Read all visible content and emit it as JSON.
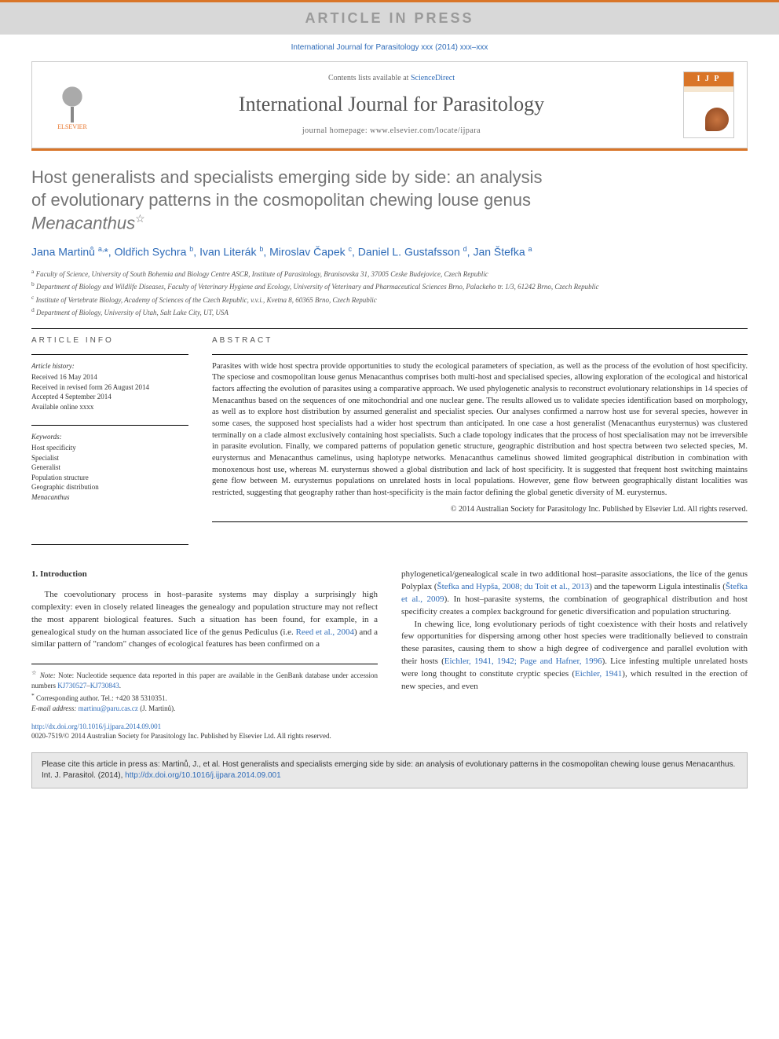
{
  "banner": "ARTICLE IN PRESS",
  "journal_ref": "International Journal for Parasitology xxx (2014) xxx–xxx",
  "header": {
    "contents_prefix": "Contents lists available at ",
    "contents_link": "ScienceDirect",
    "journal_title": "International Journal for Parasitology",
    "homepage_prefix": "journal homepage: ",
    "homepage_url": "www.elsevier.com/locate/ijpara",
    "elsevier_label": "ELSEVIER",
    "cover_label": "I J P"
  },
  "title_line1": "Host generalists and specialists emerging side by side: an analysis",
  "title_line2": "of evolutionary patterns in the cosmopolitan chewing louse genus",
  "title_line3": "Menacanthus",
  "star": "☆",
  "authors_html": "Jana Martinů <sup>a,</sup>*, Oldřich Sychra <sup>b</sup>, Ivan Literák <sup>b</sup>, Miroslav Čapek <sup>c</sup>, Daniel L. Gustafsson <sup>d</sup>, Jan Štefka <sup>a</sup>",
  "affiliations": [
    {
      "sup": "a",
      "text": "Faculty of Science, University of South Bohemia and Biology Centre ASCR, Institute of Parasitology, Branisovska 31, 37005 Ceske Budejovice, Czech Republic"
    },
    {
      "sup": "b",
      "text": "Department of Biology and Wildlife Diseases, Faculty of Veterinary Hygiene and Ecology, University of Veterinary and Pharmaceutical Sciences Brno, Palackeho tr. 1/3, 61242 Brno, Czech Republic"
    },
    {
      "sup": "c",
      "text": "Institute of Vertebrate Biology, Academy of Sciences of the Czech Republic, v.v.i., Kvetna 8, 60365 Brno, Czech Republic"
    },
    {
      "sup": "d",
      "text": "Department of Biology, University of Utah, Salt Lake City, UT, USA"
    }
  ],
  "article_info": {
    "heading": "ARTICLE INFO",
    "history_label": "Article history:",
    "history": [
      "Received 16 May 2014",
      "Received in revised form 26 August 2014",
      "Accepted 4 September 2014",
      "Available online xxxx"
    ],
    "keywords_label": "Keywords:",
    "keywords": [
      "Host specificity",
      "Specialist",
      "Generalist",
      "Population structure",
      "Geographic distribution",
      "Menacanthus"
    ]
  },
  "abstract": {
    "heading": "ABSTRACT",
    "text": "Parasites with wide host spectra provide opportunities to study the ecological parameters of speciation, as well as the process of the evolution of host specificity. The speciose and cosmopolitan louse genus Menacanthus comprises both multi-host and specialised species, allowing exploration of the ecological and historical factors affecting the evolution of parasites using a comparative approach. We used phylogenetic analysis to reconstruct evolutionary relationships in 14 species of Menacanthus based on the sequences of one mitochondrial and one nuclear gene. The results allowed us to validate species identification based on morphology, as well as to explore host distribution by assumed generalist and specialist species. Our analyses confirmed a narrow host use for several species, however in some cases, the supposed host specialists had a wider host spectrum than anticipated. In one case a host generalist (Menacanthus eurysternus) was clustered terminally on a clade almost exclusively containing host specialists. Such a clade topology indicates that the process of host specialisation may not be irreversible in parasite evolution. Finally, we compared patterns of population genetic structure, geographic distribution and host spectra between two selected species, M. eurysternus and Menacanthus camelinus, using haplotype networks. Menacanthus camelinus showed limited geographical distribution in combination with monoxenous host use, whereas M. eurysternus showed a global distribution and lack of host specificity. It is suggested that frequent host switching maintains gene flow between M. eurysternus populations on unrelated hosts in local populations. However, gene flow between geographically distant localities was restricted, suggesting that geography rather than host-specificity is the main factor defining the global genetic diversity of M. eurysternus.",
    "copyright": "© 2014 Australian Society for Parasitology Inc. Published by Elsevier Ltd. All rights reserved."
  },
  "intro": {
    "heading": "1. Introduction",
    "para1_a": "The coevolutionary process in host–parasite systems may display a surprisingly high complexity: even in closely related lineages the genealogy and population structure may not reflect the most apparent biological features. Such a situation has been found, for example, in a genealogical study on the human associated lice of the genus Pediculus (i.e. ",
    "para1_cite1": "Reed et al., 2004",
    "para1_b": ") and a similar pattern of \"random\" changes of ecological features has been confirmed on a ",
    "para2_a": "phylogenetical/genealogical scale in two additional host–parasite associations, the lice of the genus Polyplax (",
    "para2_cite1": "Štefka and Hypša, 2008; du Toit et al., 2013",
    "para2_b": ") and the tapeworm Ligula intestinalis (",
    "para2_cite2": "Štefka et al., 2009",
    "para2_c": "). In host–parasite systems, the combination of geographical distribution and host specificity creates a complex background for genetic diversification and population structuring.",
    "para3_a": "In chewing lice, long evolutionary periods of tight coexistence with their hosts and relatively few opportunities for dispersing among other host species were traditionally believed to constrain these parasites, causing them to show a high degree of codivergence and parallel evolution with their hosts (",
    "para3_cite1": "Eichler, 1941, 1942; Page and Hafner, 1996",
    "para3_b": "). Lice infesting multiple unrelated hosts were long thought to constitute cryptic species (",
    "para3_cite2": "Eichler, 1941",
    "para3_c": "), which resulted in the erection of new species, and even"
  },
  "footnotes": {
    "note_star": "☆",
    "note_text_a": "Note: Nucleotide sequence data reported in this paper are available in the GenBank database under accession numbers ",
    "note_link1": "KJ730527",
    "note_dash": "–",
    "note_link2": "KJ730843",
    "note_period": ".",
    "corr_star": "*",
    "corr_text": "Corresponding author. Tel.: +420 38 5310351.",
    "email_label": "E-mail address: ",
    "email": "martinu@paru.cas.cz",
    "email_who": " (J. Martinů)."
  },
  "doi": {
    "url": "http://dx.doi.org/10.1016/j.ijpara.2014.09.001",
    "issn_line": "0020-7519/© 2014 Australian Society for Parasitology Inc. Published by Elsevier Ltd. All rights reserved."
  },
  "citebox": {
    "text_a": "Please cite this article in press as: Martinů, J., et al. Host generalists and specialists emerging side by side: an analysis of evolutionary patterns in the cosmopolitan chewing louse genus Menacanthus. Int. J. Parasitol. (2014), ",
    "link": "http://dx.doi.org/10.1016/j.ijpara.2014.09.001"
  },
  "colors": {
    "accent": "#d97528",
    "link": "#2e6bb8",
    "banner_bg": "#d8d8d8",
    "banner_text": "#9a9a9a",
    "title_gray": "#747474"
  }
}
